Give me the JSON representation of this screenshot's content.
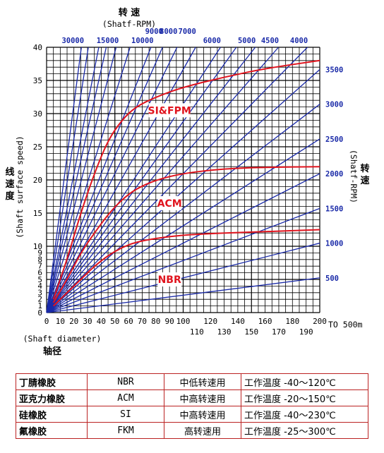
{
  "chart_data": {
    "type": "line",
    "top_title_zh": "转 速",
    "top_title_en": "(Shatf-RPM)",
    "left_title_zh": "线\n速\n度",
    "left_title_en": "(Shaft surface speed)",
    "right_title_zh": "转\n速",
    "right_title_en": "(Shatf-RPM)",
    "bottom_title_en": "(Shaft diameter)",
    "bottom_title_zh": "轴径",
    "x_unit": "TO 500m",
    "xlim": [
      0,
      200
    ],
    "ylim": [
      0,
      40
    ],
    "x_ticks_row1": [
      "0",
      "10",
      "20",
      "30",
      "40",
      "50",
      "60",
      "70",
      "80",
      "90",
      "100",
      "120",
      "140",
      "160",
      "180",
      "200"
    ],
    "x_ticks_row2": [
      "110",
      "130",
      "150",
      "170",
      "190"
    ],
    "y_ticks_major": [
      "0",
      "5",
      "10",
      "15",
      "20",
      "25",
      "30",
      "35",
      "40"
    ],
    "y_ticks_minor": [
      "1",
      "2",
      "3",
      "4",
      "6",
      "7",
      "8",
      "9"
    ],
    "rpm_lines": [
      30000,
      25000,
      20000,
      17500,
      15000,
      12500,
      10000,
      9000,
      8000,
      7000,
      6000,
      5500,
      5000,
      4500,
      4000,
      3500,
      3000,
      2500,
      2000,
      1500,
      1000,
      500
    ],
    "rpm_top_labels": [
      "30000",
      "15000",
      "10000",
      "9000",
      "8000",
      "7000",
      "6000",
      "5000",
      "4500",
      "4000"
    ],
    "rpm_right_labels": [
      "3500",
      "3000",
      "2500",
      "2000",
      "1500",
      "1000",
      "500"
    ],
    "limit_curves": [
      {
        "name": "SI&FPM",
        "points": [
          [
            5,
            2
          ],
          [
            15,
            8
          ],
          [
            25,
            15
          ],
          [
            35,
            21
          ],
          [
            45,
            26
          ],
          [
            55,
            29
          ],
          [
            65,
            31
          ],
          [
            80,
            32.5
          ],
          [
            100,
            34
          ],
          [
            130,
            35.5
          ],
          [
            160,
            36.8
          ],
          [
            200,
            38
          ]
        ]
      },
      {
        "name": "ACM",
        "points": [
          [
            5,
            1.5
          ],
          [
            15,
            5
          ],
          [
            25,
            9
          ],
          [
            35,
            12
          ],
          [
            45,
            14.8
          ],
          [
            55,
            17
          ],
          [
            65,
            18.6
          ],
          [
            80,
            20
          ],
          [
            100,
            21
          ],
          [
            130,
            21.7
          ],
          [
            160,
            21.9
          ],
          [
            200,
            22
          ]
        ]
      },
      {
        "name": "NBR",
        "points": [
          [
            5,
            1
          ],
          [
            15,
            3
          ],
          [
            25,
            5
          ],
          [
            35,
            7
          ],
          [
            45,
            8.6
          ],
          [
            55,
            9.8
          ],
          [
            65,
            10.6
          ],
          [
            80,
            11.2
          ],
          [
            100,
            11.7
          ],
          [
            130,
            12
          ],
          [
            160,
            12.2
          ],
          [
            200,
            12.5
          ]
        ]
      }
    ],
    "grid": true
  },
  "table": {
    "rows": [
      {
        "name": "丁腈橡胶",
        "code": "NBR",
        "use": "中低转速用",
        "temp": "工作温度 -40～120℃"
      },
      {
        "name": "亚克力橡胶",
        "code": "ACM",
        "use": "中高转速用",
        "temp": "工作温度 -20～150℃"
      },
      {
        "name": "硅橡胶",
        "code": "SI",
        "use": "中高转速用",
        "temp": "工作温度 -40～230℃"
      },
      {
        "name": "氟橡胶",
        "code": "FKM",
        "use": "高转速用",
        "temp": "工作温度 -25～300℃"
      }
    ]
  },
  "colors": {
    "grid": "#000000",
    "rpm": "#1a2aa8",
    "curve": "#e0141e",
    "tag_bg": "#ffffff",
    "table_border": "#bb2222"
  }
}
